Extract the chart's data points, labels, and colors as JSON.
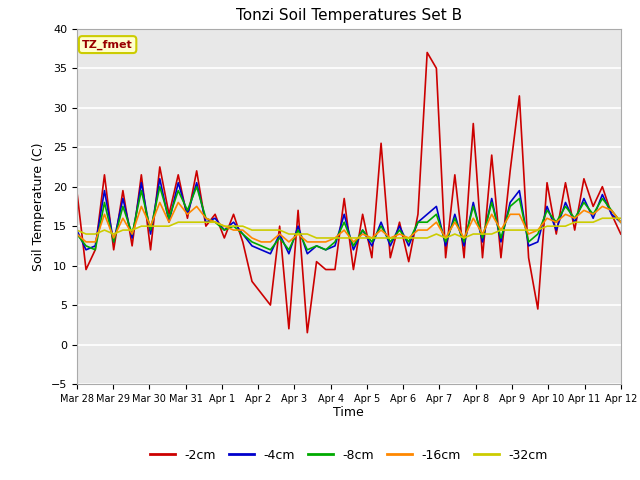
{
  "title": "Tonzi Soil Temperatures Set B",
  "xlabel": "Time",
  "ylabel": "Soil Temperature (C)",
  "ylim": [
    -5,
    40
  ],
  "xlim": [
    0,
    15
  ],
  "plot_bg_color": "#e8e8e8",
  "annotation_label": "TZ_fmet",
  "annotation_bg": "#ffffcc",
  "annotation_border": "#cccc00",
  "series_colors": {
    "-2cm": "#cc0000",
    "-4cm": "#0000cc",
    "-8cm": "#00aa00",
    "-16cm": "#ff8800",
    "-32cm": "#cccc00"
  },
  "x_tick_labels": [
    "Mar 28",
    "Mar 29",
    "Mar 30",
    "Mar 31",
    "Apr 1",
    "Apr 2",
    "Apr 3",
    "Apr 4",
    "Apr 5",
    "Apr 6",
    "Apr 7",
    "Apr 8",
    "Apr 9",
    "Apr 10",
    "Apr 11",
    "Apr 12"
  ],
  "x_tick_positions": [
    0,
    1,
    2,
    3,
    4,
    5,
    6,
    7,
    8,
    9,
    10,
    11,
    12,
    13,
    14,
    15
  ],
  "y_tick_positions": [
    -5,
    0,
    5,
    10,
    15,
    20,
    25,
    30,
    35,
    40
  ],
  "series": {
    "-2cm": [
      19.5,
      9.5,
      12.0,
      21.5,
      12.0,
      19.5,
      12.5,
      21.5,
      12.0,
      22.5,
      16.5,
      21.5,
      16.0,
      22.0,
      15.0,
      16.5,
      13.5,
      16.5,
      13.0,
      8.0,
      6.5,
      5.0,
      15.0,
      2.0,
      17.0,
      1.5,
      10.5,
      9.5,
      9.5,
      18.5,
      9.5,
      16.5,
      11.0,
      25.5,
      11.0,
      15.5,
      10.5,
      16.5,
      37.0,
      35.0,
      11.0,
      21.5,
      11.0,
      28.0,
      11.0,
      24.0,
      11.0,
      22.0,
      31.5,
      11.0,
      4.5,
      20.5,
      14.0,
      20.5,
      14.5,
      21.0,
      17.5,
      20.0,
      16.5,
      14.0
    ],
    "-4cm": [
      14.5,
      12.0,
      12.5,
      19.5,
      13.0,
      18.5,
      13.5,
      20.5,
      14.0,
      21.0,
      15.5,
      20.5,
      16.5,
      20.5,
      15.5,
      16.0,
      14.5,
      15.5,
      14.0,
      12.5,
      12.0,
      11.5,
      14.0,
      11.5,
      15.0,
      11.5,
      12.5,
      12.0,
      12.5,
      16.5,
      12.0,
      14.5,
      12.5,
      15.5,
      12.5,
      15.0,
      12.5,
      15.5,
      16.5,
      17.5,
      12.5,
      16.5,
      12.5,
      18.0,
      13.0,
      18.5,
      13.0,
      18.0,
      19.5,
      12.5,
      13.0,
      17.5,
      14.5,
      18.0,
      15.5,
      18.5,
      16.0,
      19.0,
      16.5,
      15.5
    ],
    "-8cm": [
      14.0,
      12.5,
      12.0,
      18.0,
      13.0,
      17.5,
      14.0,
      19.5,
      14.5,
      20.0,
      16.0,
      19.5,
      17.0,
      20.0,
      16.0,
      15.5,
      14.5,
      15.0,
      14.0,
      13.0,
      12.5,
      12.0,
      13.5,
      12.0,
      14.5,
      12.0,
      12.5,
      12.0,
      13.0,
      15.5,
      12.5,
      14.5,
      13.0,
      15.0,
      13.0,
      14.5,
      13.0,
      15.5,
      15.5,
      16.5,
      13.0,
      16.0,
      13.0,
      17.5,
      13.5,
      18.0,
      13.5,
      17.5,
      18.5,
      13.0,
      14.0,
      17.0,
      15.5,
      17.5,
      16.0,
      18.0,
      16.5,
      18.5,
      17.0,
      15.5
    ],
    "-16cm": [
      14.0,
      13.0,
      13.0,
      16.5,
      13.5,
      16.0,
      14.0,
      17.5,
      15.0,
      18.0,
      15.5,
      18.0,
      16.5,
      17.5,
      16.0,
      15.5,
      15.0,
      14.5,
      14.5,
      13.5,
      13.0,
      13.0,
      14.0,
      13.0,
      14.0,
      13.0,
      13.0,
      13.0,
      13.5,
      14.5,
      13.0,
      14.0,
      13.5,
      14.5,
      13.5,
      14.0,
      13.5,
      14.5,
      14.5,
      15.5,
      13.5,
      15.5,
      13.5,
      16.0,
      14.0,
      16.5,
      14.5,
      16.5,
      16.5,
      14.0,
      14.5,
      16.0,
      15.5,
      16.5,
      16.0,
      17.0,
      16.5,
      17.5,
      17.0,
      15.5
    ],
    "-32cm": [
      14.5,
      14.0,
      14.0,
      14.5,
      14.0,
      14.5,
      14.5,
      15.0,
      15.0,
      15.0,
      15.0,
      15.5,
      15.5,
      15.5,
      15.5,
      15.5,
      15.0,
      15.0,
      15.0,
      14.5,
      14.5,
      14.5,
      14.5,
      14.0,
      14.0,
      14.0,
      13.5,
      13.5,
      13.5,
      13.5,
      13.5,
      13.5,
      13.5,
      13.5,
      13.5,
      13.5,
      13.5,
      13.5,
      13.5,
      14.0,
      13.5,
      14.0,
      13.5,
      14.0,
      14.0,
      14.0,
      14.5,
      14.5,
      14.5,
      14.5,
      14.5,
      15.0,
      15.0,
      15.0,
      15.5,
      15.5,
      15.5,
      16.0,
      16.0,
      16.0
    ]
  },
  "legend_entries": [
    "-2cm",
    "-4cm",
    "-8cm",
    "-16cm",
    "-32cm"
  ]
}
